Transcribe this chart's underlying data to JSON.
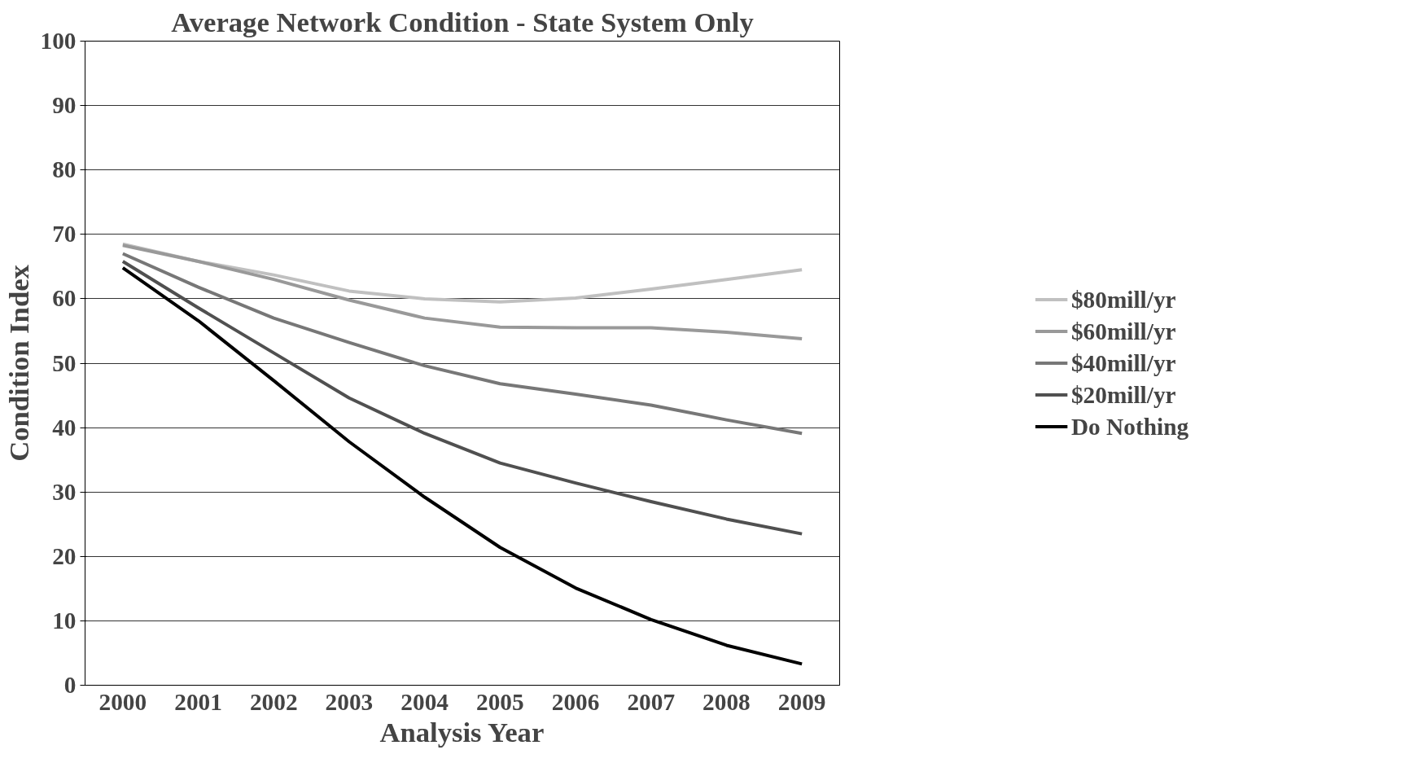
{
  "chart_data": {
    "type": "line",
    "title": "Average Network Condition - State System Only",
    "xlabel": "Analysis Year",
    "ylabel": "Condition Index",
    "categories": [
      "2000",
      "2001",
      "2002",
      "2003",
      "2004",
      "2005",
      "2006",
      "2007",
      "2008",
      "2009"
    ],
    "series": [
      {
        "name": "$80mill/yr",
        "color": "#c0c0c0",
        "values": [
          68.5,
          65.8,
          63.7,
          61.2,
          60.0,
          59.5,
          60.1,
          61.5,
          63.0,
          64.5
        ]
      },
      {
        "name": "$60mill/yr",
        "color": "#999999",
        "values": [
          68.3,
          65.8,
          63.0,
          59.8,
          57.0,
          55.6,
          55.5,
          55.5,
          54.8,
          53.8
        ]
      },
      {
        "name": "$40mill/yr",
        "color": "#777777",
        "values": [
          67.0,
          61.8,
          57.0,
          53.2,
          49.6,
          46.8,
          45.2,
          43.5,
          41.2,
          39.1
        ]
      },
      {
        "name": "$20mill/yr",
        "color": "#505050",
        "values": [
          65.8,
          58.6,
          51.6,
          44.6,
          39.1,
          34.5,
          31.4,
          28.5,
          25.8,
          23.5
        ]
      },
      {
        "name": "Do Nothing",
        "color": "#000000",
        "values": [
          64.8,
          56.6,
          47.3,
          37.8,
          29.2,
          21.4,
          15.1,
          10.2,
          6.2,
          3.3
        ]
      }
    ],
    "ylim": [
      0,
      100
    ],
    "yticks": [
      0,
      10,
      20,
      30,
      40,
      50,
      60,
      70,
      80,
      90,
      100
    ],
    "grid": "y",
    "legend": "right",
    "marker": "none",
    "line_style": "solid"
  }
}
